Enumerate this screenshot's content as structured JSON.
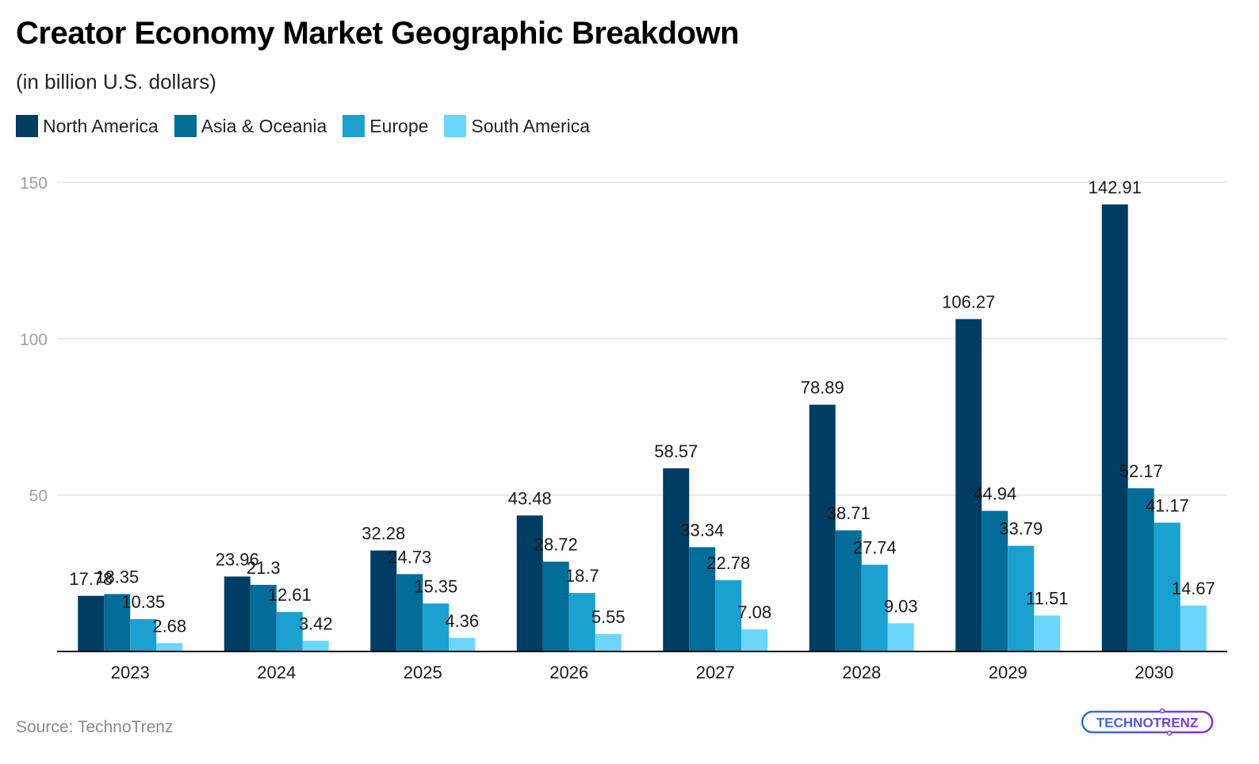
{
  "header": {
    "title": "Creator Economy Market Geographic Breakdown",
    "subtitle": "(in billion U.S. dollars)"
  },
  "footer": {
    "source": "Source: TechnoTrenz",
    "logo_text": "TECHNOTRENZ",
    "logo_colors": [
      "#2f6fe4",
      "#8a2be2"
    ]
  },
  "chart_data": {
    "type": "bar",
    "title": "Creator Economy Market Geographic Breakdown",
    "subtitle": "(in billion U.S. dollars)",
    "xlabel": "",
    "ylabel": "",
    "categories": [
      "2023",
      "2024",
      "2025",
      "2026",
      "2027",
      "2028",
      "2029",
      "2030"
    ],
    "ylim": [
      0,
      150
    ],
    "yticks": [
      50,
      100,
      150
    ],
    "grid": true,
    "legend_position": "top-left",
    "series": [
      {
        "name": "North America",
        "color": "#003d63",
        "values": [
          17.78,
          23.96,
          32.28,
          43.48,
          58.57,
          78.89,
          106.27,
          142.91
        ]
      },
      {
        "name": "Asia & Oceania",
        "color": "#026d99",
        "values": [
          18.35,
          21.3,
          24.73,
          28.72,
          33.34,
          38.71,
          44.94,
          52.17
        ]
      },
      {
        "name": "Europe",
        "color": "#1aa1cf",
        "values": [
          10.35,
          12.61,
          15.35,
          18.7,
          22.78,
          27.74,
          33.79,
          41.17
        ]
      },
      {
        "name": "South America",
        "color": "#6bd6fc",
        "values": [
          2.68,
          3.42,
          4.36,
          5.55,
          7.08,
          9.03,
          11.51,
          14.67
        ]
      }
    ]
  }
}
